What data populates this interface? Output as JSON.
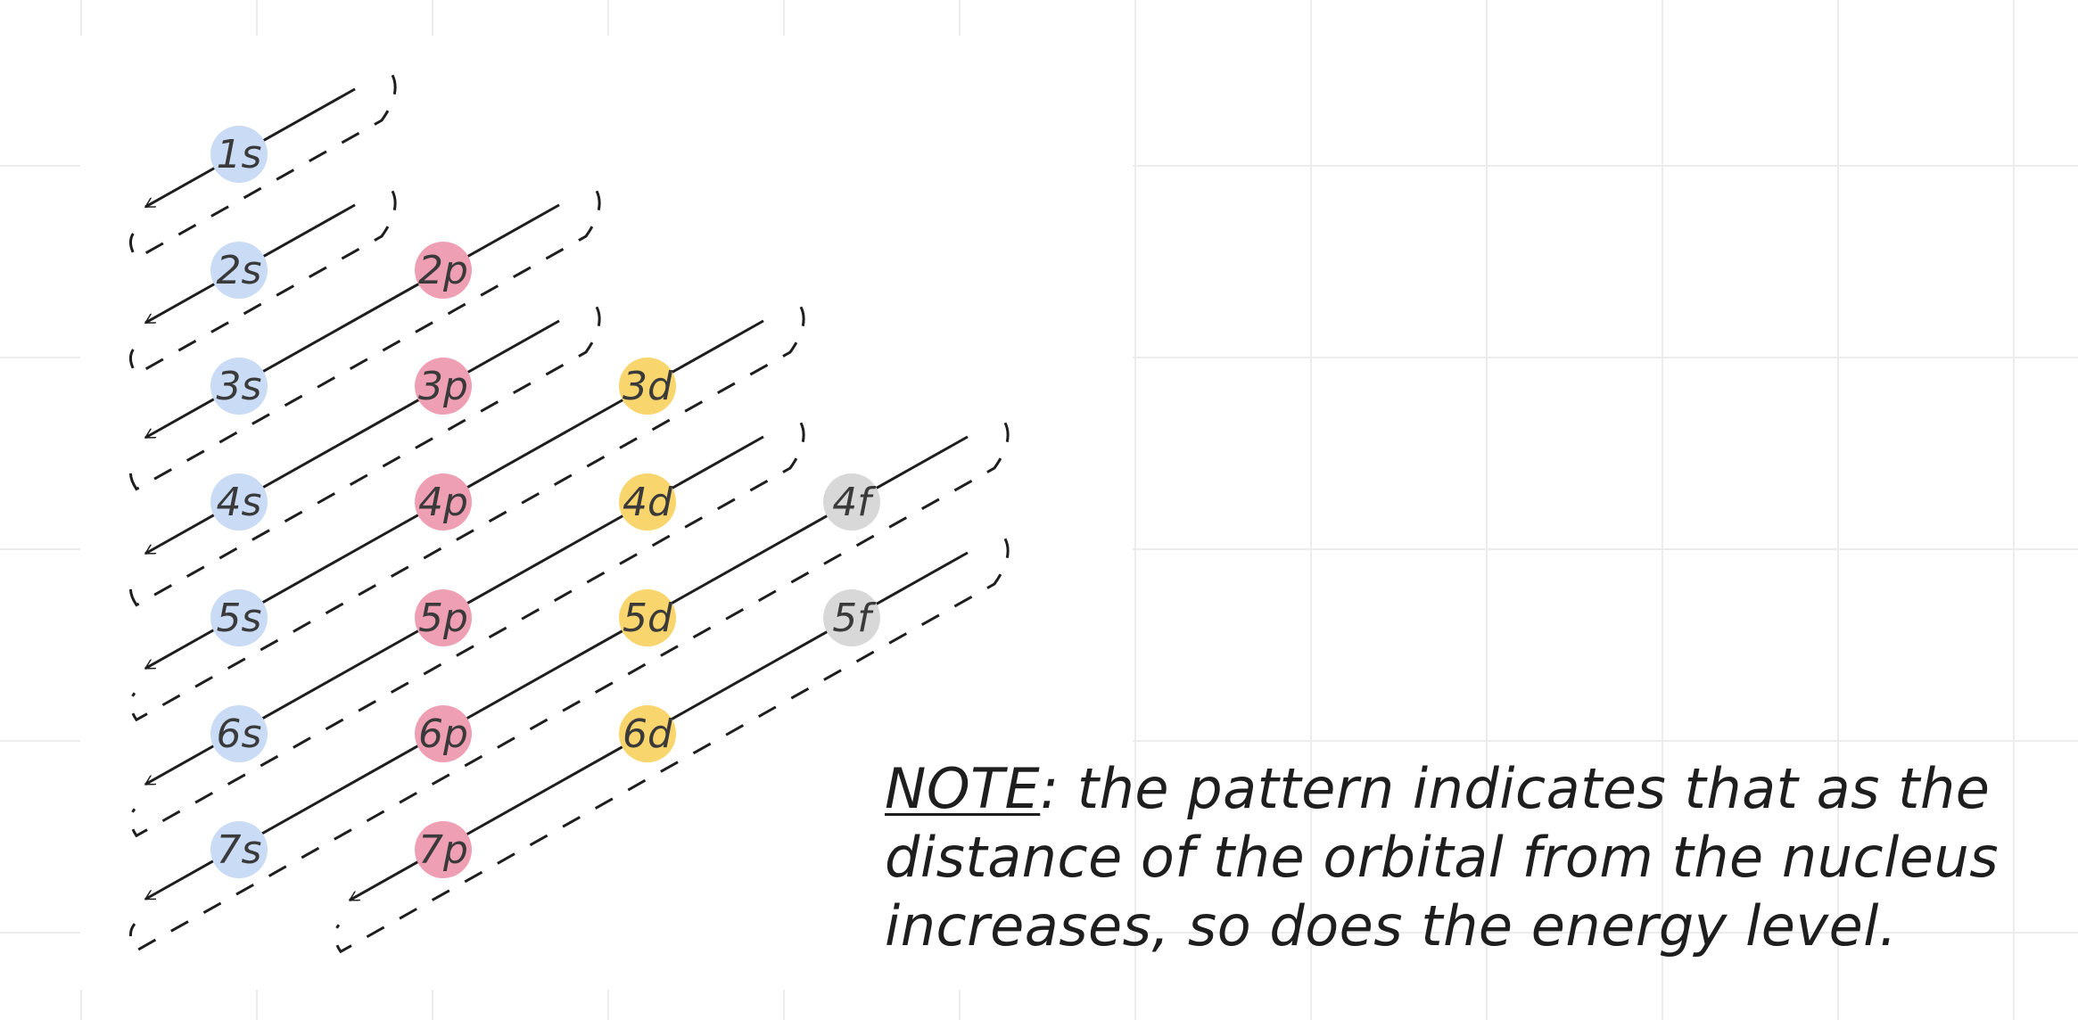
{
  "diagram": {
    "orbitals": [
      {
        "label": "1s",
        "n": 1,
        "type": "s"
      },
      {
        "label": "2s",
        "n": 2,
        "type": "s"
      },
      {
        "label": "2p",
        "n": 2,
        "type": "p"
      },
      {
        "label": "3s",
        "n": 3,
        "type": "s"
      },
      {
        "label": "3p",
        "n": 3,
        "type": "p"
      },
      {
        "label": "3d",
        "n": 3,
        "type": "d"
      },
      {
        "label": "4s",
        "n": 4,
        "type": "s"
      },
      {
        "label": "4p",
        "n": 4,
        "type": "p"
      },
      {
        "label": "4d",
        "n": 4,
        "type": "d"
      },
      {
        "label": "4f",
        "n": 4,
        "type": "f"
      },
      {
        "label": "5s",
        "n": 5,
        "type": "s"
      },
      {
        "label": "5p",
        "n": 5,
        "type": "p"
      },
      {
        "label": "5d",
        "n": 5,
        "type": "d"
      },
      {
        "label": "5f",
        "n": 5,
        "type": "f"
      },
      {
        "label": "6s",
        "n": 6,
        "type": "s"
      },
      {
        "label": "6p",
        "n": 6,
        "type": "p"
      },
      {
        "label": "6d",
        "n": 6,
        "type": "d"
      },
      {
        "label": "7s",
        "n": 7,
        "type": "s"
      },
      {
        "label": "7p",
        "n": 7,
        "type": "p"
      }
    ],
    "subshell_colors": {
      "s": "#c9dbf5",
      "p": "#ef9fb4",
      "d": "#f9d56e",
      "f": "#d8d8d8"
    },
    "arrow_color": "#1e1e1e"
  },
  "note": {
    "label": "NOTE",
    "lines": [
      ": the pattern indicates that as the",
      "distance of the orbital from the nucleus",
      "increases, so does the energy level."
    ]
  }
}
